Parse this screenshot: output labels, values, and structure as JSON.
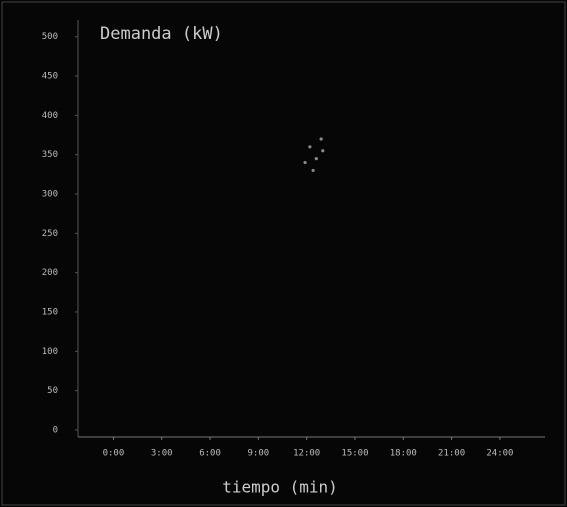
{
  "chart_data": {
    "type": "scatter",
    "title": "Demanda (kW)",
    "x_label": "tiempo (min)",
    "x": [
      11.9,
      12.2,
      12.4,
      12.6,
      12.9,
      13.0
    ],
    "series": [
      {
        "name": "Demanda",
        "color": "#8a8a8a",
        "values": [
          340,
          360,
          330,
          345,
          370,
          355
        ]
      }
    ],
    "xlim": [
      -2.2,
      26.8
    ],
    "xticks": [
      {
        "value": 0,
        "label": "0:00"
      },
      {
        "value": 3,
        "label": "3:00"
      },
      {
        "value": 6,
        "label": "6:00"
      },
      {
        "value": 9,
        "label": "9:00"
      },
      {
        "value": 12,
        "label": "12:00"
      },
      {
        "value": 15,
        "label": "15:00"
      },
      {
        "value": 18,
        "label": "18:00"
      },
      {
        "value": 21,
        "label": "21:00"
      },
      {
        "value": 24,
        "label": "24:00"
      }
    ],
    "ylim": [
      -9,
      534
    ],
    "yticks": [
      0,
      50,
      100,
      150,
      200,
      250,
      300,
      350,
      400,
      450,
      500
    ]
  }
}
